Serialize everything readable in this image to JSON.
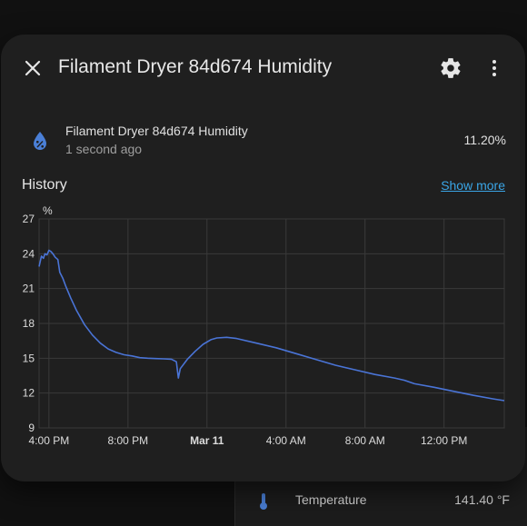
{
  "background": {
    "entity_row": {
      "icon": "thermometer-icon",
      "label": "Temperature",
      "value": "141.40 °F"
    }
  },
  "dialog": {
    "title": "Filament Dryer 84d674 Humidity",
    "icons": {
      "close": "close-icon",
      "settings": "gear-icon",
      "more": "more-vertical-icon"
    },
    "entity": {
      "icon": "water-percent-icon",
      "name": "Filament Dryer 84d674 Humidity",
      "last_changed": "1 second ago",
      "state": "11.20%"
    },
    "history": {
      "title": "History",
      "show_more": "Show more"
    }
  },
  "colors": {
    "accent": "#3aa5e6",
    "line": "#4a74d6",
    "dialog_bg": "#1f1f1f",
    "page_bg": "#111111"
  },
  "chart_data": {
    "type": "line",
    "ylabel": "%",
    "ylim": [
      9,
      27
    ],
    "yticks": [
      9,
      12,
      15,
      18,
      21,
      24,
      27
    ],
    "xlabels": [
      {
        "label": "4:00 PM",
        "bold": false,
        "t": 0.5
      },
      {
        "label": "8:00 PM",
        "bold": false,
        "t": 4.5
      },
      {
        "label": "Mar 11",
        "bold": true,
        "t": 8.5
      },
      {
        "label": "4:00 AM",
        "bold": false,
        "t": 12.5
      },
      {
        "label": "8:00 AM",
        "bold": false,
        "t": 16.5
      },
      {
        "label": "12:00 PM",
        "bold": false,
        "t": 20.5
      }
    ],
    "xrange": [
      0,
      23.55
    ],
    "grid": true,
    "series": [
      {
        "values": [
          [
            0.0,
            22.9
          ],
          [
            0.12,
            23.8
          ],
          [
            0.22,
            23.6
          ],
          [
            0.3,
            24.0
          ],
          [
            0.4,
            23.9
          ],
          [
            0.5,
            24.3
          ],
          [
            0.6,
            24.2
          ],
          [
            0.7,
            24.0
          ],
          [
            0.82,
            23.7
          ],
          [
            0.95,
            23.5
          ],
          [
            1.05,
            22.4
          ],
          [
            1.2,
            21.9
          ],
          [
            1.35,
            21.2
          ],
          [
            1.6,
            20.2
          ],
          [
            1.9,
            19.1
          ],
          [
            2.3,
            17.9
          ],
          [
            2.7,
            17.0
          ],
          [
            3.1,
            16.3
          ],
          [
            3.5,
            15.8
          ],
          [
            3.9,
            15.5
          ],
          [
            4.3,
            15.3
          ],
          [
            4.7,
            15.2
          ],
          [
            5.1,
            15.05
          ],
          [
            5.5,
            15.0
          ],
          [
            5.9,
            14.97
          ],
          [
            6.3,
            14.95
          ],
          [
            6.7,
            14.92
          ],
          [
            6.95,
            14.7
          ],
          [
            7.05,
            13.3
          ],
          [
            7.15,
            14.1
          ],
          [
            7.5,
            14.9
          ],
          [
            7.9,
            15.6
          ],
          [
            8.3,
            16.2
          ],
          [
            8.7,
            16.6
          ],
          [
            9.0,
            16.75
          ],
          [
            9.5,
            16.8
          ],
          [
            10.0,
            16.7
          ],
          [
            11.0,
            16.3
          ],
          [
            12.0,
            15.9
          ],
          [
            13.0,
            15.4
          ],
          [
            14.0,
            14.9
          ],
          [
            15.0,
            14.4
          ],
          [
            16.0,
            14.0
          ],
          [
            17.0,
            13.6
          ],
          [
            18.0,
            13.3
          ],
          [
            18.5,
            13.1
          ],
          [
            19.0,
            12.8
          ],
          [
            20.0,
            12.5
          ],
          [
            21.0,
            12.15
          ],
          [
            22.0,
            11.8
          ],
          [
            23.0,
            11.5
          ],
          [
            23.55,
            11.35
          ]
        ]
      }
    ]
  }
}
